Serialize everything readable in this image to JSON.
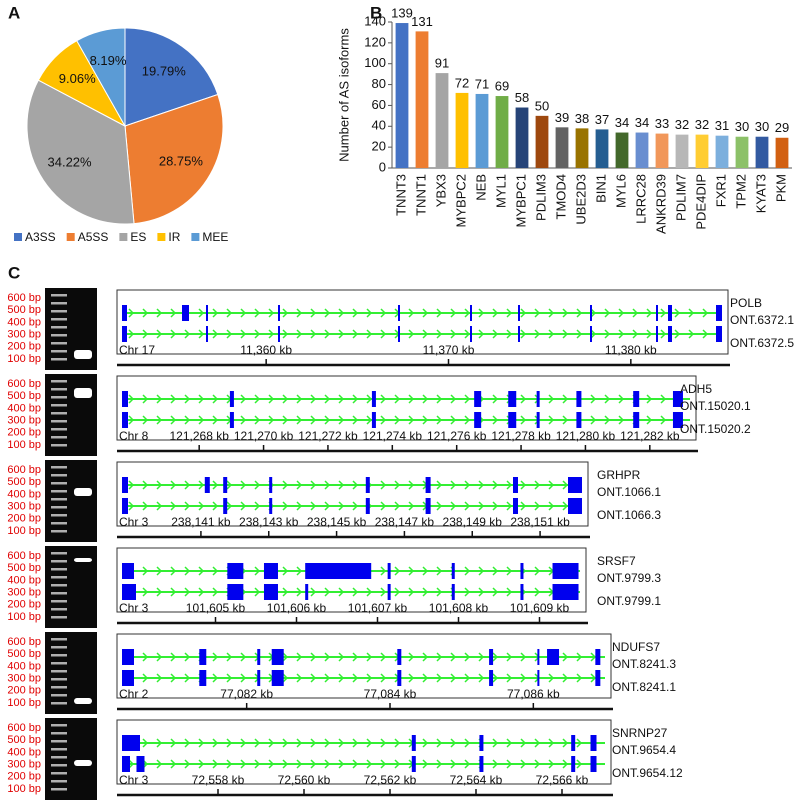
{
  "chart_data": [
    {
      "type": "pie",
      "panel": "A",
      "categories": [
        "A3SS",
        "A5SS",
        "ES",
        "IR",
        "MEE"
      ],
      "values": [
        19.79,
        28.75,
        34.22,
        9.06,
        8.19
      ],
      "value_labels": [
        "19.79%",
        "28.75%",
        "34.22%",
        "9.06%",
        "8.19%"
      ],
      "colors": [
        "#4472c4",
        "#ed7d31",
        "#a5a5a5",
        "#ffc000",
        "#5b9bd5"
      ],
      "legend": "bottom"
    },
    {
      "type": "bar",
      "panel": "B",
      "ylabel": "Number of AS isoforms",
      "categories": [
        "TNNT3",
        "TNNT1",
        "YBX3",
        "MYBPC2",
        "NEB",
        "MYL1",
        "MYBPC1",
        "PDLIM3",
        "TMOD4",
        "UBE2D3",
        "BIN1",
        "MYL6",
        "LRRC28",
        "ANKRD39",
        "PDLIM7",
        "PDE4DIP",
        "FXR1",
        "TPM2",
        "KYAT3",
        "PKM"
      ],
      "values": [
        139,
        131,
        91,
        72,
        71,
        69,
        58,
        50,
        39,
        38,
        37,
        34,
        34,
        33,
        32,
        32,
        31,
        30,
        30,
        29
      ],
      "colors": [
        "#4472c4",
        "#ed7d31",
        "#a5a5a5",
        "#ffc000",
        "#5b9bd5",
        "#70ad47",
        "#264478",
        "#9e480e",
        "#636363",
        "#997300",
        "#255e91",
        "#43682b",
        "#698ed0",
        "#f1975a",
        "#b7b7b7",
        "#ffcd33",
        "#7cafdd",
        "#8cc168",
        "#335aa1",
        "#d26012"
      ],
      "ylim": [
        0,
        140
      ],
      "yticks": [
        0,
        20,
        40,
        60,
        80,
        100,
        120,
        140
      ]
    }
  ],
  "panel_c": {
    "label": "C",
    "ladder": [
      "600 bp",
      "500 bp",
      "400 bp",
      "300 bp",
      "200 bp",
      "100 bp"
    ],
    "rows": [
      {
        "gene": "POLB",
        "isoforms": [
          "ONT.6372.1",
          "ONT.6372.5"
        ],
        "chrom": "Chr 17",
        "ticks": [
          "11,360 kb",
          "11,370 kb",
          "11,380 kb"
        ]
      },
      {
        "gene": "ADH5",
        "isoforms": [
          "ONT.15020.1",
          "ONT.15020.2"
        ],
        "chrom": "Chr 8",
        "ticks": [
          "121,268 kb",
          "121,270 kb",
          "121,272 kb",
          "121,274 kb",
          "121,276 kb",
          "121,278 kb",
          "121,280 kb",
          "121,282 kb"
        ]
      },
      {
        "gene": "GRHPR",
        "isoforms": [
          "ONT.1066.1",
          "ONT.1066.3"
        ],
        "chrom": "Chr 3",
        "ticks": [
          "238,141 kb",
          "238,143 kb",
          "238,145 kb",
          "238,147 kb",
          "238,149 kb",
          "238,151 kb"
        ]
      },
      {
        "gene": "SRSF7",
        "isoforms": [
          "ONT.9799.3",
          "ONT.9799.1"
        ],
        "chrom": "Chr 3",
        "ticks": [
          "101,605 kb",
          "101,606 kb",
          "101,607 kb",
          "101,608 kb",
          "101,609 kb"
        ]
      },
      {
        "gene": "NDUFS7",
        "isoforms": [
          "ONT.8241.3",
          "ONT.8241.1"
        ],
        "chrom": "Chr 2",
        "ticks": [
          "77,082 kb",
          "77,084 kb",
          "77,086 kb"
        ]
      },
      {
        "gene": "SNRNP27",
        "isoforms": [
          "ONT.9654.4",
          "ONT.9654.12"
        ],
        "chrom": "Chr 3",
        "ticks": [
          "72,558 kb",
          "72,560 kb",
          "72,562 kb",
          "72,564 kb",
          "72,566 kb"
        ]
      }
    ]
  }
}
